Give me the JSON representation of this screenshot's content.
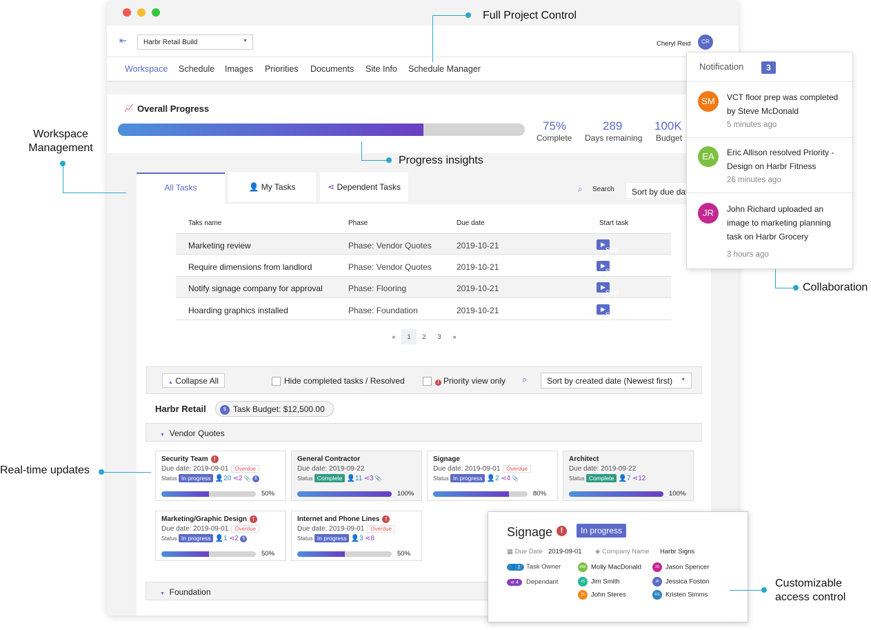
{
  "window": {
    "project_select": "Harbr Retail Build",
    "user_name": "Cheryl Reid",
    "user_initials": "CR"
  },
  "nav": [
    "Workspace",
    "Schedule",
    "Images",
    "Priorities",
    "Documents",
    "Site Info",
    "Schedule Manager"
  ],
  "progress": {
    "title": "Overall Progress",
    "value": 75,
    "complete_value": "75%",
    "complete_label": "Complete",
    "days_value": "289",
    "days_label": "Days remaining",
    "budget_value": "100K",
    "budget_label": "Budget"
  },
  "tabs": [
    "All Tasks",
    "My Tasks",
    "Dependent Tasks"
  ],
  "search_label": "Search",
  "sort_due": "Sort by due date",
  "table": {
    "headers": [
      "Taks name",
      "Phase",
      "Due date",
      "Start task"
    ],
    "button": "Start Task",
    "rows": [
      [
        "Marketing review",
        "Phase: Vendor Quotes",
        "2019-10-21"
      ],
      [
        "Require dimensions from landlord",
        "Phase: Vendor Quotes",
        "2019-10-21"
      ],
      [
        "Notify signage company for approval",
        "Phase: Flooring",
        "2019-10-21"
      ],
      [
        "Hoarding graphics installed",
        "Phase: Foundation",
        "2019-10-21"
      ]
    ]
  },
  "pagination": [
    "«",
    "1",
    "2",
    "3",
    "»"
  ],
  "filters": {
    "collapse": "Collapse All",
    "hide_completed": "Hide completed tasks / Resolved",
    "priority_view": "Priority view only",
    "sort": "Sort by created date (Newest first)"
  },
  "group": {
    "name": "Harbr Retail",
    "budget": "Task Budget: $12,500.00",
    "phase1": "Vendor Quotes",
    "phase2": "Foundation"
  },
  "cards": [
    {
      "title": "Security Team",
      "due": "Due date: 2019-09-01",
      "overdue": "Overdue",
      "status": "In progress",
      "owners": "20",
      "deps": "2",
      "progress": 50,
      "pct": "50%"
    },
    {
      "title": "General Contractor",
      "due": "Due date: 2019-09-22",
      "overdue": "",
      "status": "Complete",
      "owners": "11",
      "deps": "3",
      "progress": 100,
      "pct": "100%"
    },
    {
      "title": "Signage",
      "due": "Due date: 2019-09-01",
      "overdue": "Overdue",
      "status": "In progress",
      "owners": "2",
      "deps": "4",
      "progress": 80,
      "pct": "80%"
    },
    {
      "title": "Architect",
      "due": "Due date: 2019-09-22",
      "overdue": "",
      "status": "Complete",
      "owners": "7",
      "deps": "12",
      "progress": 100,
      "pct": "100%"
    },
    {
      "title": "Marketing/Graphic Design",
      "due": "Due date: 2019-09-01",
      "overdue": "Overdue",
      "status": "In progress",
      "owners": "1",
      "deps": "2",
      "progress": 50,
      "pct": "50%"
    },
    {
      "title": "Internet and Phone Lines",
      "due": "Due date: 2019-09-01",
      "overdue": "Overdue",
      "status": "In progress",
      "owners": "3",
      "deps": "8",
      "progress": 50,
      "pct": "50%"
    }
  ],
  "status_label": "Status",
  "notifications": {
    "title": "Notification",
    "count": "3",
    "items": [
      {
        "initials": "SM",
        "color": "#f07a16",
        "text": "VCT floor prep was completed by Steve McDonald",
        "time": "5 minutes ago"
      },
      {
        "initials": "EA",
        "color": "#7cc142",
        "text": "Eric Allison resolved Priority - Design on Harbr Fitness",
        "time": "26 minutes ago"
      },
      {
        "initials": "JR",
        "color": "#c2288f",
        "text": "John Richard uploaded an image to marketing planning task on Harbr Grocery",
        "time": "3 hours ago"
      }
    ]
  },
  "detail": {
    "title": "Signage",
    "status": "In progress",
    "due_label": "Due Date",
    "due": "2019-09-01",
    "company_label": "Company Name",
    "company": "Harbr Signs",
    "owner_count": "2",
    "owner_label": "Task Owner",
    "dep_count": "4",
    "dep_label": "Dependant",
    "people": [
      {
        "i": "MM",
        "n": "Molly MacDonald",
        "c": "#7cc142"
      },
      {
        "i": "JS",
        "n": "Jason Spencer",
        "c": "#c2288f"
      },
      {
        "i": "JS",
        "n": "Jim Smith",
        "c": "#26b89a"
      },
      {
        "i": "JF",
        "n": "Jessica Foston",
        "c": "#5b6bc8"
      },
      {
        "i": "JS",
        "n": "John Steres",
        "c": "#f08a16"
      },
      {
        "i": "KS",
        "n": "Kristen Simms",
        "c": "#2a86c0"
      }
    ]
  },
  "callouts": {
    "full": "Full Project Control",
    "workspace": "Workspace Management",
    "progress": "Progress insights",
    "collab": "Collaboration",
    "realtime": "Real-time updates",
    "access": "Customizable access control"
  }
}
